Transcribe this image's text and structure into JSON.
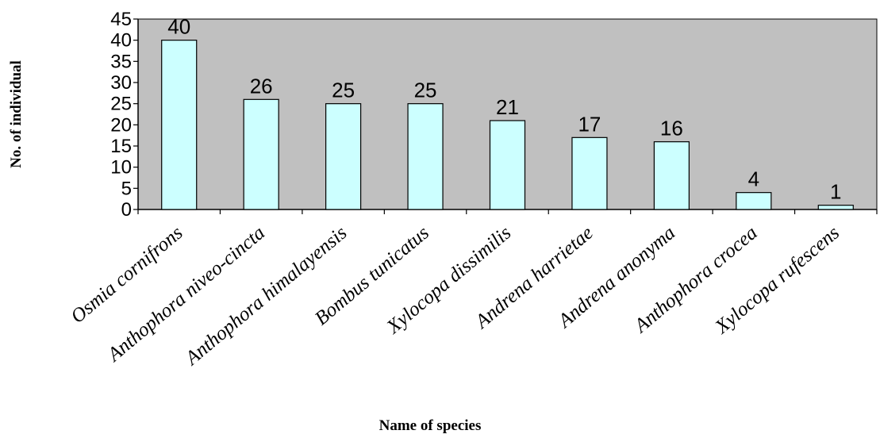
{
  "chart_data": {
    "type": "bar",
    "title": "",
    "xlabel": "Name of species",
    "ylabel": "No. of individual",
    "categories": [
      "Osmia cornifrons",
      "Anthophora niveo-cincta",
      "Anthophora himalayensis",
      "Bombus tunicatus",
      "Xylocopa dissimilis",
      "Andrena harrietae",
      "Andrena anonyma",
      "Anthophora crocea",
      "Xylocopa rufescens"
    ],
    "values": [
      40,
      26,
      25,
      25,
      21,
      17,
      16,
      4,
      1
    ],
    "data_labels": [
      "40",
      "26",
      "25",
      "25",
      "21",
      "17",
      "16",
      "4",
      "1"
    ],
    "ylim": [
      0,
      45
    ],
    "yticks": [
      "0",
      "5",
      "10",
      "15",
      "20",
      "25",
      "30",
      "35",
      "40",
      "45"
    ],
    "grid": false,
    "legend": "none",
    "colors": {
      "plot_background": "#c0c0c0",
      "bar_fill": "#ccffff",
      "bar_stroke": "#000000",
      "axis": "#000000"
    }
  }
}
